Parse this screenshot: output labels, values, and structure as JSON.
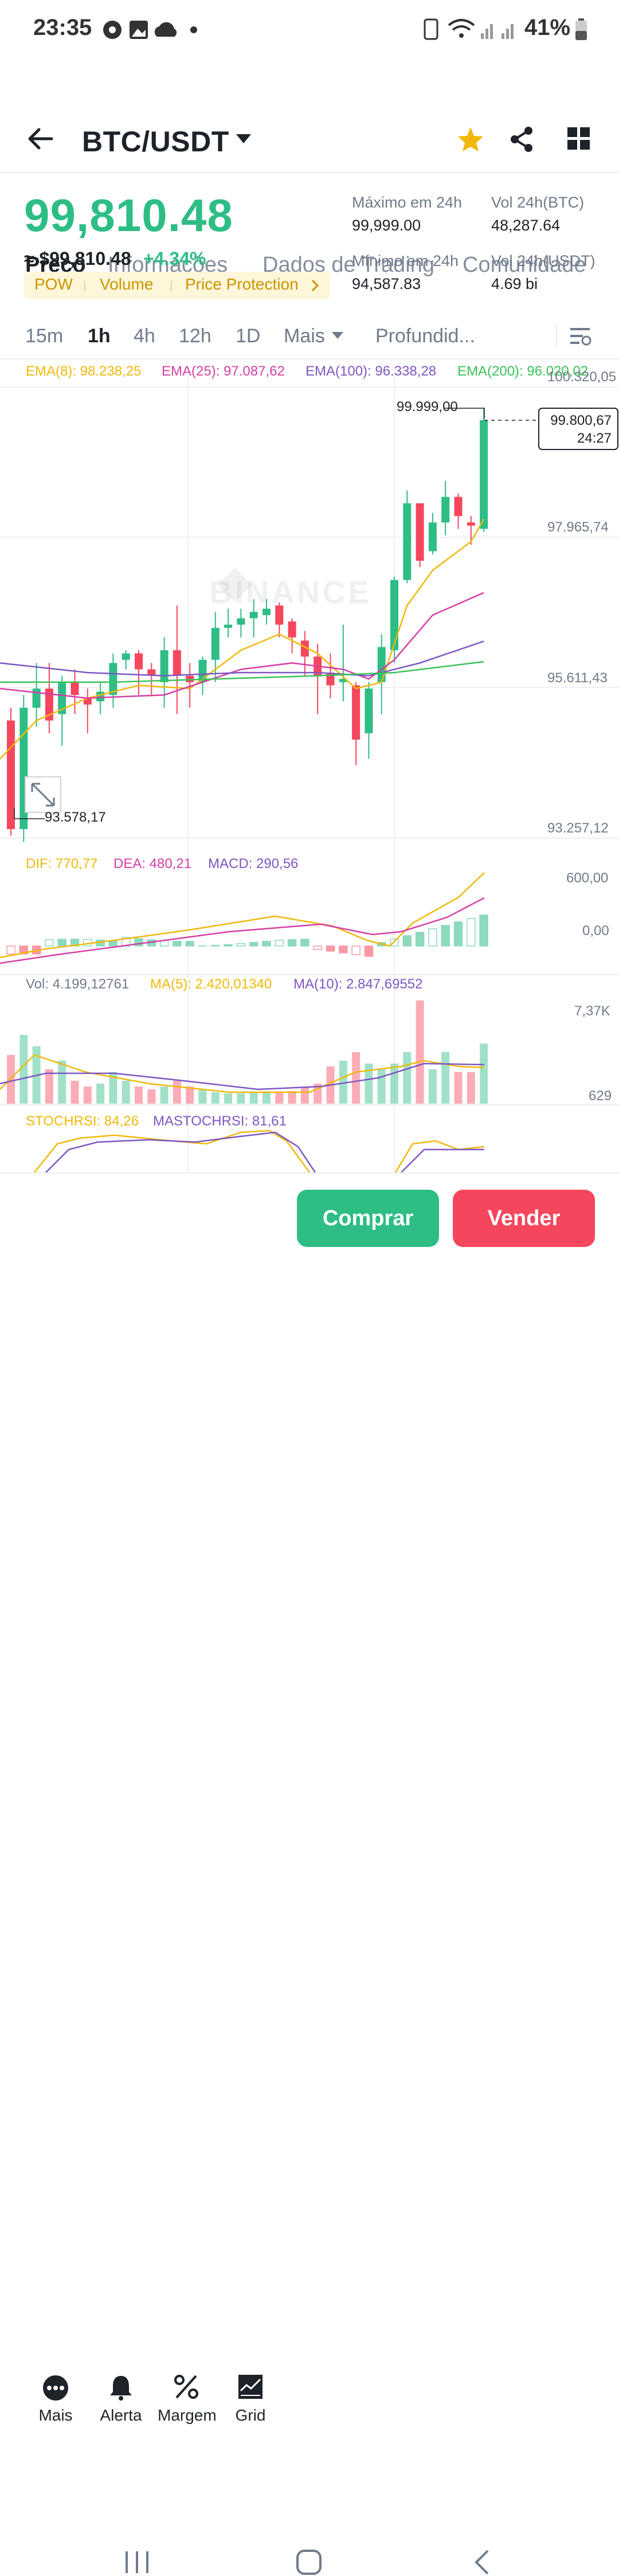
{
  "status_bar": {
    "time": "23:35",
    "battery": "41%"
  },
  "header": {
    "pair": "BTC/USDT"
  },
  "tabs": [
    {
      "label": "Preço"
    },
    {
      "label": "Informações"
    },
    {
      "label": "Dados de Trading"
    },
    {
      "label": "Comunidade"
    }
  ],
  "ticker": {
    "price": "99,810.48",
    "fiat": "≈ $99,810.48",
    "change": "+4.34%",
    "tags": [
      "POW",
      "Volume",
      "Price Protection"
    ],
    "stats": {
      "high_label": "Máximo em 24h",
      "high_value": "99,999.00",
      "low_label": "Mínimo em 24h",
      "low_value": "94,587.83",
      "vol_btc_label": "Vol 24h(BTC)",
      "vol_btc_value": "48,287.64",
      "vol_usdt_label": "Vol 24h(USDT)",
      "vol_usdt_value": "4.69 bi"
    }
  },
  "intervals": [
    "15m",
    "1h",
    "4h",
    "12h",
    "1D",
    "Mais",
    "Profundid..."
  ],
  "main_chart": {
    "ema8": "EMA(8): 98.238,25",
    "ema25": "EMA(25): 97.087,62",
    "ema100": "EMA(100): 96.338,28",
    "ema200": "EMA(200): 96.020,02",
    "y_labels": [
      "100.320,05",
      "97.965,74",
      "95.611,43",
      "93.257,12"
    ],
    "high_marker": "99.999,00",
    "low_marker": "93.578,17",
    "last_price": "99.800,67",
    "countdown": "24:27",
    "watermark": "BINANCE"
  },
  "macd": {
    "dif": "DIF: 770,77",
    "dea": "DEA: 480,21",
    "macd": "MACD: 290,56",
    "y_labels": [
      "600,00",
      "0,00"
    ]
  },
  "volume": {
    "vol": "Vol: 4.199,12761",
    "ma5": "MA(5): 2.420,01340",
    "ma10": "MA(10): 2.847,69552",
    "y_labels": [
      "7,37K",
      "629"
    ]
  },
  "stochrsi": {
    "stoch": "STOCHRSI: 84,26",
    "ma": "MASTOCHRSI: 81,61"
  },
  "colors": {
    "up": "#2ebd85",
    "down": "#f6465d",
    "accent": "#f0b90b",
    "ema8": "#f0b90b",
    "ema25": "#d63fa6",
    "ema100": "#7e57c2",
    "ema200": "#3ac25a"
  },
  "bottom_nav": [
    {
      "label": "Mais",
      "icon": "more-icon"
    },
    {
      "label": "Alerta",
      "icon": "bell-icon"
    },
    {
      "label": "Margem",
      "icon": "percent-icon"
    },
    {
      "label": "Grid",
      "icon": "grid-bot-icon"
    }
  ],
  "actions": {
    "buy": "Comprar",
    "sell": "Vender"
  }
}
